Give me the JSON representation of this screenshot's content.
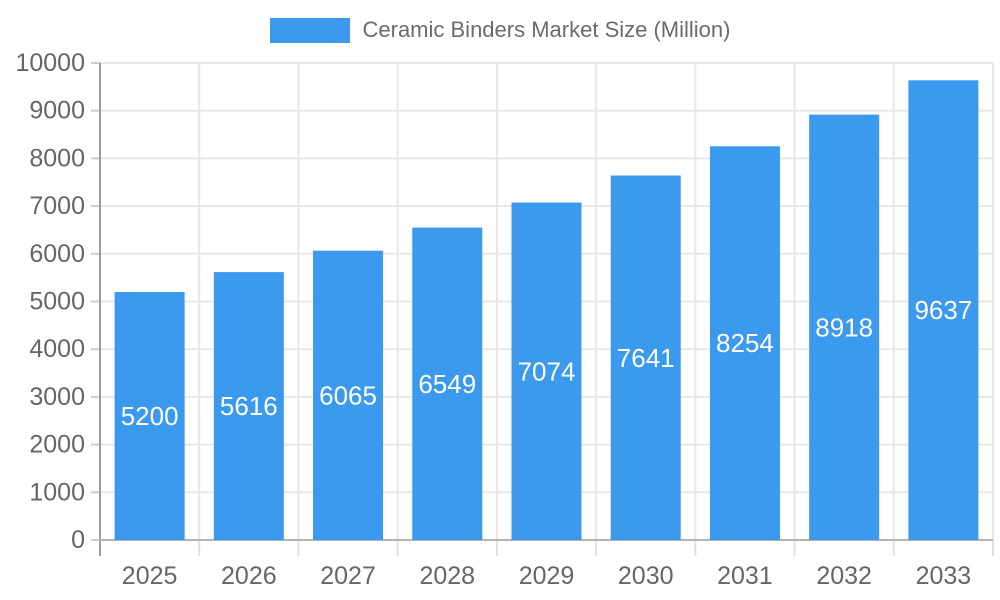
{
  "legend": {
    "position": "top"
  },
  "chart_data": {
    "type": "bar",
    "title": "Ceramic Binders Market Size (Million)",
    "series_name": "Ceramic Binders Market Size (Million)",
    "categories": [
      "2025",
      "2026",
      "2027",
      "2028",
      "2029",
      "2030",
      "2031",
      "2032",
      "2033"
    ],
    "values": [
      5200,
      5616,
      6065,
      6549,
      7074,
      7641,
      8254,
      8918,
      9637
    ],
    "value_labels_shown": true,
    "value_label_position": "inside-center",
    "xlabel": "",
    "ylabel": "",
    "ylim": [
      0,
      10000
    ],
    "ytick_step": 1000,
    "ytick_labels": [
      "0",
      "1000",
      "2000",
      "3000",
      "4000",
      "5000",
      "6000",
      "7000",
      "8000",
      "9000",
      "10000"
    ],
    "grid": true,
    "legend_position": "top",
    "colors": {
      "bar": "#3B99EE",
      "value_label": "#ffffff",
      "axis_text": "#666666",
      "legend_text": "#6b6b6b",
      "gridline": "#e7e7e7",
      "x_axis_line": "#b3b3b3",
      "y_axis_line": "#9c9c9c",
      "y_tick": "#cccccc",
      "x_tick": "#e0e0e0",
      "background": "#ffffff"
    }
  }
}
